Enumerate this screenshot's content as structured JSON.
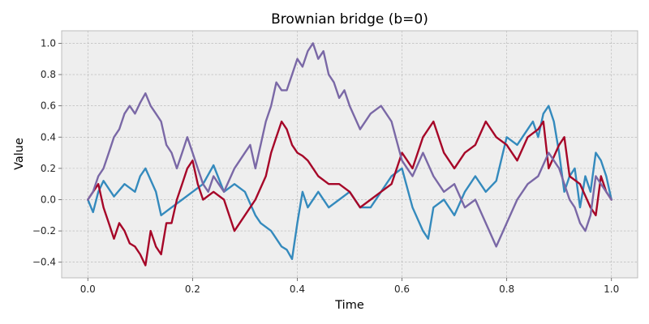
{
  "chart_data": {
    "type": "line",
    "title": "Brownian bridge (b=0)",
    "xlabel": "Time",
    "ylabel": "Value",
    "xlim": [
      -0.05,
      1.05
    ],
    "ylim": [
      -0.5,
      1.08
    ],
    "grid": true,
    "legend": "none",
    "x_ticks": [
      0.0,
      0.2,
      0.4,
      0.6,
      0.8,
      1.0
    ],
    "x_tick_labels": [
      "0.0",
      "0.2",
      "0.4",
      "0.6",
      "0.8",
      "1.0"
    ],
    "y_ticks": [
      -0.4,
      -0.2,
      0.0,
      0.2,
      0.4,
      0.6,
      0.8,
      1.0
    ],
    "y_tick_labels": [
      "−0.4",
      "−0.2",
      "0.0",
      "0.2",
      "0.4",
      "0.6",
      "0.8",
      "1.0"
    ],
    "colors": {
      "plot_background": "#eeeeee",
      "grid": "#b2b2b2"
    },
    "series": [
      {
        "color": "#348abd",
        "x": [
          0.0,
          0.01,
          0.02,
          0.03,
          0.05,
          0.07,
          0.09,
          0.1,
          0.11,
          0.13,
          0.14,
          0.16,
          0.18,
          0.2,
          0.22,
          0.24,
          0.26,
          0.28,
          0.3,
          0.32,
          0.33,
          0.35,
          0.36,
          0.37,
          0.38,
          0.39,
          0.4,
          0.41,
          0.42,
          0.44,
          0.46,
          0.48,
          0.5,
          0.52,
          0.54,
          0.56,
          0.58,
          0.6,
          0.62,
          0.64,
          0.65,
          0.66,
          0.68,
          0.7,
          0.72,
          0.74,
          0.76,
          0.78,
          0.8,
          0.82,
          0.84,
          0.85,
          0.86,
          0.87,
          0.88,
          0.89,
          0.9,
          0.91,
          0.92,
          0.93,
          0.94,
          0.95,
          0.96,
          0.97,
          0.98,
          0.99,
          1.0
        ],
        "y": [
          0.0,
          -0.08,
          0.05,
          0.12,
          0.02,
          0.1,
          0.05,
          0.15,
          0.2,
          0.05,
          -0.1,
          -0.05,
          0.0,
          0.05,
          0.1,
          0.22,
          0.05,
          0.1,
          0.05,
          -0.1,
          -0.15,
          -0.2,
          -0.25,
          -0.3,
          -0.32,
          -0.38,
          -0.15,
          0.05,
          -0.05,
          0.05,
          -0.05,
          0.0,
          0.05,
          -0.05,
          -0.05,
          0.05,
          0.15,
          0.2,
          -0.05,
          -0.2,
          -0.25,
          -0.05,
          0.0,
          -0.1,
          0.05,
          0.15,
          0.05,
          0.12,
          0.4,
          0.35,
          0.45,
          0.5,
          0.4,
          0.55,
          0.6,
          0.5,
          0.3,
          0.05,
          0.15,
          0.2,
          -0.05,
          0.15,
          0.05,
          0.3,
          0.25,
          0.15,
          0.0
        ]
      },
      {
        "color": "#a60628",
        "x": [
          0.0,
          0.01,
          0.02,
          0.03,
          0.04,
          0.05,
          0.06,
          0.07,
          0.08,
          0.09,
          0.1,
          0.11,
          0.12,
          0.13,
          0.14,
          0.15,
          0.16,
          0.17,
          0.18,
          0.19,
          0.2,
          0.21,
          0.22,
          0.24,
          0.26,
          0.28,
          0.3,
          0.32,
          0.34,
          0.35,
          0.36,
          0.37,
          0.38,
          0.39,
          0.4,
          0.41,
          0.42,
          0.44,
          0.46,
          0.48,
          0.5,
          0.52,
          0.54,
          0.56,
          0.58,
          0.59,
          0.6,
          0.61,
          0.62,
          0.64,
          0.66,
          0.68,
          0.7,
          0.72,
          0.74,
          0.76,
          0.78,
          0.8,
          0.82,
          0.84,
          0.86,
          0.87,
          0.88,
          0.9,
          0.91,
          0.92,
          0.94,
          0.96,
          0.97,
          0.98,
          0.99,
          1.0
        ],
        "y": [
          0.0,
          0.05,
          0.1,
          -0.05,
          -0.15,
          -0.25,
          -0.15,
          -0.2,
          -0.28,
          -0.3,
          -0.35,
          -0.42,
          -0.2,
          -0.3,
          -0.35,
          -0.15,
          -0.15,
          0.0,
          0.1,
          0.2,
          0.25,
          0.1,
          0.0,
          0.05,
          0.0,
          -0.2,
          -0.1,
          0.0,
          0.15,
          0.3,
          0.4,
          0.5,
          0.45,
          0.35,
          0.3,
          0.28,
          0.25,
          0.15,
          0.1,
          0.1,
          0.05,
          -0.05,
          0.0,
          0.05,
          0.1,
          0.2,
          0.3,
          0.25,
          0.2,
          0.4,
          0.5,
          0.3,
          0.2,
          0.3,
          0.35,
          0.5,
          0.4,
          0.35,
          0.25,
          0.4,
          0.45,
          0.5,
          0.2,
          0.35,
          0.4,
          0.15,
          0.1,
          -0.05,
          -0.1,
          0.15,
          0.05,
          0.0
        ]
      },
      {
        "color": "#7a68a6",
        "x": [
          0.0,
          0.01,
          0.02,
          0.03,
          0.04,
          0.05,
          0.06,
          0.07,
          0.08,
          0.09,
          0.1,
          0.11,
          0.12,
          0.13,
          0.14,
          0.15,
          0.16,
          0.17,
          0.18,
          0.19,
          0.2,
          0.21,
          0.22,
          0.23,
          0.24,
          0.25,
          0.26,
          0.28,
          0.3,
          0.31,
          0.32,
          0.33,
          0.34,
          0.35,
          0.36,
          0.37,
          0.38,
          0.39,
          0.4,
          0.41,
          0.42,
          0.43,
          0.44,
          0.45,
          0.46,
          0.47,
          0.48,
          0.49,
          0.5,
          0.52,
          0.54,
          0.56,
          0.58,
          0.6,
          0.61,
          0.62,
          0.64,
          0.66,
          0.68,
          0.7,
          0.72,
          0.74,
          0.76,
          0.78,
          0.8,
          0.82,
          0.84,
          0.86,
          0.88,
          0.9,
          0.92,
          0.93,
          0.94,
          0.95,
          0.96,
          0.97,
          0.98,
          0.99,
          1.0
        ],
        "y": [
          0.0,
          0.05,
          0.15,
          0.2,
          0.3,
          0.4,
          0.45,
          0.55,
          0.6,
          0.55,
          0.62,
          0.68,
          0.6,
          0.55,
          0.5,
          0.35,
          0.3,
          0.2,
          0.3,
          0.4,
          0.3,
          0.2,
          0.1,
          0.05,
          0.15,
          0.1,
          0.05,
          0.2,
          0.3,
          0.35,
          0.2,
          0.35,
          0.5,
          0.6,
          0.75,
          0.7,
          0.7,
          0.8,
          0.9,
          0.85,
          0.95,
          1.0,
          0.9,
          0.95,
          0.8,
          0.75,
          0.65,
          0.7,
          0.6,
          0.45,
          0.55,
          0.6,
          0.5,
          0.25,
          0.2,
          0.15,
          0.3,
          0.15,
          0.05,
          0.1,
          -0.05,
          0.0,
          -0.15,
          -0.3,
          -0.15,
          0.0,
          0.1,
          0.15,
          0.3,
          0.2,
          0.0,
          -0.05,
          -0.15,
          -0.2,
          -0.1,
          0.15,
          0.1,
          0.05,
          0.0
        ]
      }
    ]
  }
}
